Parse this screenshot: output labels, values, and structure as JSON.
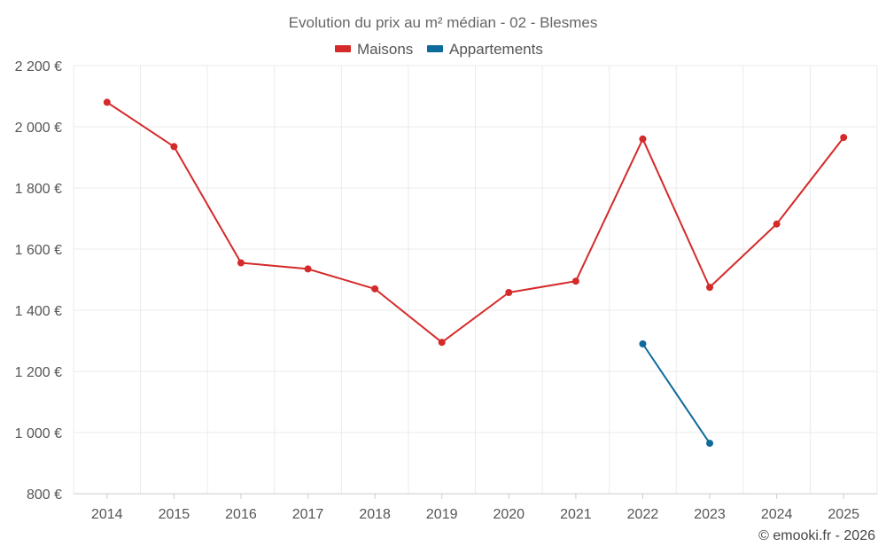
{
  "chart_data": {
    "type": "line",
    "title": "Evolution du prix au m² médian - 02 - Blesmes",
    "categories": [
      "2014",
      "2015",
      "2016",
      "2017",
      "2018",
      "2019",
      "2020",
      "2021",
      "2022",
      "2023",
      "2024",
      "2025"
    ],
    "series": [
      {
        "name": "Maisons",
        "color": "#d42a2a",
        "values": [
          2080,
          1935,
          1555,
          1535,
          1470,
          1295,
          1458,
          1495,
          1960,
          1475,
          1682,
          1965
        ]
      },
      {
        "name": "Appartements",
        "color": "#0f6a9c",
        "values": [
          null,
          null,
          null,
          null,
          null,
          null,
          null,
          null,
          1290,
          965,
          null,
          null
        ]
      }
    ],
    "ylim": [
      800,
      2200
    ],
    "yticks": [
      800,
      1000,
      1200,
      1400,
      1600,
      1800,
      2000,
      2200
    ],
    "ytick_labels": [
      "800 €",
      "1 000 €",
      "1 200 €",
      "1 400 €",
      "1 600 €",
      "1 800 €",
      "2 000 €",
      "2 200 €"
    ],
    "grid": true,
    "legend_position": "top-center",
    "credit": "© emooki.fr - 2026"
  }
}
